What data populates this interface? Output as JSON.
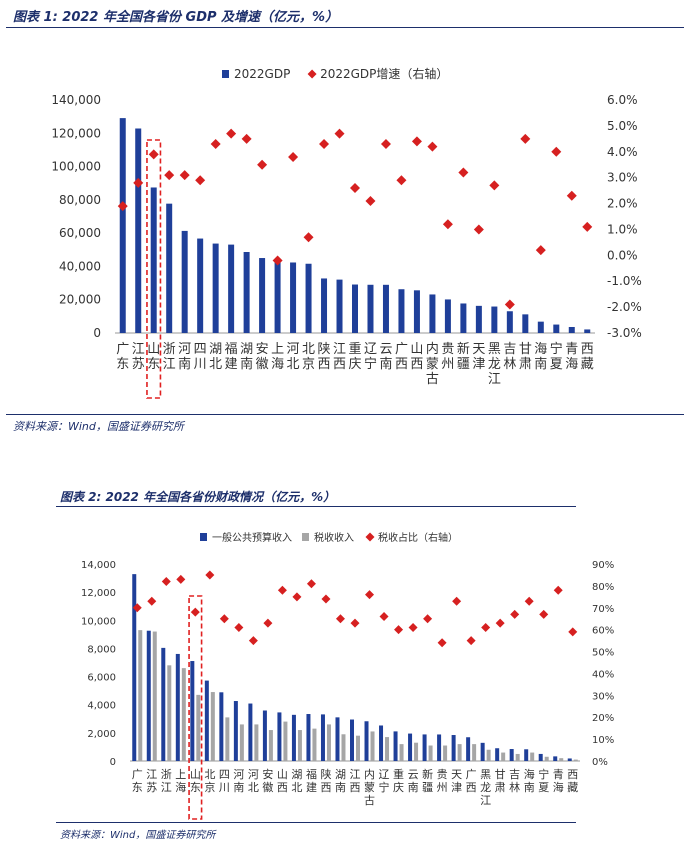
{
  "figure1": {
    "title": "图表 1: 2022 年全国各省份 GDP 及增速（亿元，%）",
    "source": "资料来源：Wind，国盛证券研究所",
    "chart_data": {
      "type": "bar",
      "categories": [
        "广东",
        "江苏",
        "山东",
        "浙江",
        "河南",
        "四川",
        "湖北",
        "福建",
        "湖南",
        "安徽",
        "上海",
        "河北",
        "北京",
        "陕西",
        "江西",
        "重庆",
        "辽宁",
        "云南",
        "广西",
        "山西",
        "内蒙古",
        "贵州",
        "新疆",
        "天津",
        "黑龙江",
        "吉林",
        "甘肃",
        "海南",
        "宁夏",
        "青海",
        "西藏"
      ],
      "series": [
        {
          "name": "2022GDP",
          "axis": "left",
          "color": "#1f3f99",
          "values": [
            129119,
            122876,
            87435,
            77715,
            61345,
            56750,
            53735,
            53110,
            48670,
            45045,
            44653,
            42370,
            41611,
            32773,
            32075,
            29129,
            28975,
            28954,
            26301,
            25643,
            23159,
            20165,
            17741,
            16311,
            15901,
            13070,
            11201,
            6818,
            5070,
            3610,
            2133
          ]
        },
        {
          "name": "2022GDP增速（右轴）",
          "axis": "right",
          "color": "#d62020",
          "values": [
            1.9,
            2.8,
            3.9,
            3.1,
            3.1,
            2.9,
            4.3,
            4.7,
            4.5,
            3.5,
            -0.2,
            3.8,
            0.7,
            4.3,
            4.7,
            2.6,
            2.1,
            4.3,
            2.9,
            4.4,
            4.2,
            1.2,
            3.2,
            1.0,
            2.7,
            -1.9,
            4.5,
            0.2,
            4.0,
            2.3,
            1.1
          ]
        }
      ],
      "y_left": {
        "ticks": [
          "0",
          "20,000",
          "40,000",
          "60,000",
          "80,000",
          "100,000",
          "120,000",
          "140,000"
        ],
        "ylim": [
          0,
          140000
        ]
      },
      "y_right": {
        "ticks": [
          "-3.0%",
          "-2.0%",
          "-1.0%",
          "0.0%",
          "1.0%",
          "2.0%",
          "3.0%",
          "4.0%",
          "5.0%",
          "6.0%"
        ],
        "ylim": [
          -3,
          6
        ]
      },
      "legend_placement": "top-center",
      "highlight_category": "山东"
    }
  },
  "figure2": {
    "title": "图表 2: 2022 年全国各省份财政情况（亿元，%）",
    "source": "资料来源：Wind，国盛证券研究所",
    "chart_data": {
      "type": "bar",
      "categories": [
        "广东",
        "江苏",
        "浙江",
        "上海",
        "山东",
        "北京",
        "四川",
        "河南",
        "河北",
        "安徽",
        "山西",
        "湖北",
        "福建",
        "陕西",
        "湖南",
        "江西",
        "内蒙古",
        "辽宁",
        "重庆",
        "云南",
        "新疆",
        "贵州",
        "天津",
        "广西",
        "黑龙江",
        "甘肃",
        "吉林",
        "海南",
        "宁夏",
        "青海",
        "西藏"
      ],
      "series": [
        {
          "name": "一般公共预算收入",
          "axis": "left",
          "color": "#1f3f99",
          "values": [
            13280,
            9259,
            8039,
            7608,
            7104,
            5714,
            4882,
            4262,
            4084,
            3589,
            3453,
            3281,
            3339,
            3312,
            3102,
            2948,
            2824,
            2524,
            2104,
            1949,
            1889,
            1886,
            1846,
            1688,
            1291,
            907,
            851,
            833,
            502,
            329,
            180
          ]
        },
        {
          "name": "税收收入",
          "axis": "left",
          "color": "#a6a6a6",
          "values": [
            9300,
            9200,
            6800,
            6600,
            4700,
            4900,
            3100,
            2600,
            2600,
            2200,
            2800,
            2200,
            2300,
            2600,
            1900,
            1800,
            2100,
            1700,
            1200,
            1300,
            1100,
            1100,
            1200,
            1200,
            800,
            600,
            500,
            600,
            300,
            200,
            100
          ]
        },
        {
          "name": "税收占比（右轴）",
          "axis": "right",
          "color": "#d62020",
          "values": [
            70,
            73,
            82,
            83,
            68,
            85,
            65,
            61,
            55,
            63,
            78,
            75,
            81,
            74,
            65,
            63,
            76,
            66,
            60,
            61,
            65,
            54,
            73,
            55,
            61,
            63,
            67,
            73,
            67,
            78,
            59
          ]
        }
      ],
      "y_left": {
        "ticks": [
          "0",
          "2,000",
          "4,000",
          "6,000",
          "8,000",
          "10,000",
          "12,000",
          "14,000"
        ],
        "ylim": [
          0,
          14000
        ]
      },
      "y_right": {
        "ticks": [
          "0%",
          "10%",
          "20%",
          "30%",
          "40%",
          "50%",
          "60%",
          "70%",
          "80%",
          "90%"
        ],
        "ylim": [
          0,
          90
        ]
      },
      "legend_placement": "top-center",
      "highlight_category": "山东"
    }
  }
}
